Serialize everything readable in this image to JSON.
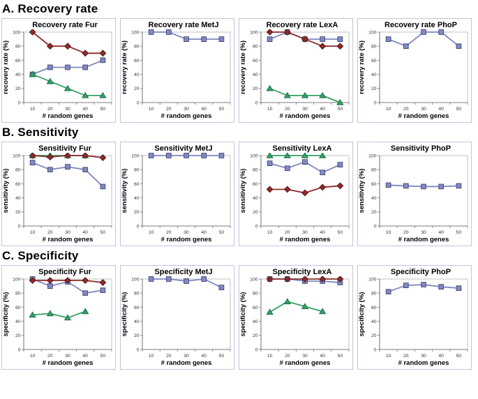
{
  "sections": [
    {
      "label": "A. Recovery rate",
      "chart_indexes": [
        0,
        1,
        2,
        3
      ]
    },
    {
      "label": "B. Sensitivity",
      "chart_indexes": [
        4,
        5,
        6,
        7
      ]
    },
    {
      "label": "C. Specificity",
      "chart_indexes": [
        8,
        9,
        10,
        11
      ]
    }
  ],
  "palette": {
    "red": {
      "line": "#8e2b2b",
      "fill": "#8e2b2b",
      "edge": "#4f1515",
      "marker": "diamond"
    },
    "blue": {
      "line": "#7f86bf",
      "fill": "#8089c2",
      "edge": "#3f4677",
      "marker": "square"
    },
    "green": {
      "line": "#33a066",
      "fill": "#33a066",
      "edge": "#1e6b41",
      "marker": "triangle"
    }
  },
  "chart_data": [
    {
      "type": "line",
      "title": "Recovery rate Fur",
      "xlabel": "# random genes",
      "ylabel": "recovery rate (%)",
      "x": [
        10,
        20,
        30,
        40,
        50
      ],
      "ylim": [
        0,
        100
      ],
      "yticks": [
        0,
        20,
        40,
        60,
        80,
        100
      ],
      "grid": false,
      "legend": "none",
      "series": [
        {
          "name": "blue-squares",
          "color": "blue",
          "values": [
            40,
            50,
            50,
            50,
            60
          ]
        },
        {
          "name": "green-triangles",
          "color": "green",
          "values": [
            40,
            30,
            20,
            10,
            10
          ]
        },
        {
          "name": "red-diamonds",
          "color": "red",
          "values": [
            100,
            80,
            80,
            70,
            70
          ]
        }
      ]
    },
    {
      "type": "line",
      "title": "Recovery rate MetJ",
      "xlabel": "# random genes",
      "ylabel": "recovery rate (%)",
      "x": [
        10,
        20,
        30,
        40,
        50
      ],
      "ylim": [
        0,
        100
      ],
      "yticks": [
        0,
        20,
        40,
        60,
        80,
        100
      ],
      "grid": false,
      "legend": "none",
      "series": [
        {
          "name": "blue-squares",
          "color": "blue",
          "values": [
            100,
            100,
            90,
            90,
            90
          ]
        }
      ]
    },
    {
      "type": "line",
      "title": "Recovery rate LexA",
      "xlabel": "# random genes",
      "ylabel": "recovery rate (%)",
      "x": [
        10,
        20,
        30,
        40,
        50
      ],
      "ylim": [
        0,
        100
      ],
      "yticks": [
        0,
        20,
        40,
        60,
        80,
        100
      ],
      "grid": false,
      "legend": "none",
      "series": [
        {
          "name": "blue-squares",
          "color": "blue",
          "values": [
            90,
            100,
            90,
            90,
            90
          ]
        },
        {
          "name": "green-triangles",
          "color": "green",
          "values": [
            20,
            10,
            10,
            10,
            0
          ]
        },
        {
          "name": "red-diamonds",
          "color": "red",
          "values": [
            100,
            100,
            90,
            80,
            80
          ]
        }
      ]
    },
    {
      "type": "line",
      "title": "Recovery rate PhoP",
      "xlabel": "# random genes",
      "ylabel": "recovery rate (%)",
      "x": [
        10,
        20,
        30,
        40,
        50
      ],
      "ylim": [
        0,
        100
      ],
      "yticks": [
        0,
        20,
        40,
        60,
        80,
        100
      ],
      "grid": false,
      "legend": "none",
      "series": [
        {
          "name": "blue-squares",
          "color": "blue",
          "values": [
            90,
            80,
            100,
            100,
            80
          ]
        }
      ]
    },
    {
      "type": "line",
      "title": "Sensitivity Fur",
      "xlabel": "# random genes",
      "ylabel": "sensitivity (%)",
      "x": [
        10,
        20,
        30,
        40,
        50
      ],
      "ylim": [
        0,
        100
      ],
      "yticks": [
        0,
        20,
        40,
        60,
        80,
        100
      ],
      "grid": false,
      "legend": "none",
      "series": [
        {
          "name": "blue-squares",
          "color": "blue",
          "values": [
            90,
            80,
            84,
            80,
            56
          ]
        },
        {
          "name": "green-triangles",
          "color": "green",
          "values": [
            100,
            100,
            100,
            100,
            null
          ]
        },
        {
          "name": "red-diamonds",
          "color": "red",
          "values": [
            100,
            98,
            100,
            100,
            97
          ]
        }
      ]
    },
    {
      "type": "line",
      "title": "Sensitivity MetJ",
      "xlabel": "# random genes",
      "ylabel": "sensitivity (%)",
      "x": [
        10,
        20,
        30,
        40,
        50
      ],
      "ylim": [
        0,
        100
      ],
      "yticks": [
        0,
        20,
        40,
        60,
        80,
        100
      ],
      "grid": false,
      "legend": "none",
      "series": [
        {
          "name": "blue-squares",
          "color": "blue",
          "values": [
            100,
            100,
            100,
            100,
            100
          ]
        }
      ]
    },
    {
      "type": "line",
      "title": "Sensitivity LexA",
      "xlabel": "# random genes",
      "ylabel": "sensitivity (%)",
      "x": [
        10,
        20,
        30,
        40,
        50
      ],
      "ylim": [
        0,
        100
      ],
      "yticks": [
        0,
        20,
        40,
        60,
        80,
        100
      ],
      "grid": false,
      "legend": "none",
      "series": [
        {
          "name": "blue-squares",
          "color": "blue",
          "values": [
            89,
            82,
            91,
            76,
            87
          ]
        },
        {
          "name": "green-triangles",
          "color": "green",
          "values": [
            100,
            100,
            100,
            100,
            null
          ]
        },
        {
          "name": "red-diamonds",
          "color": "red",
          "values": [
            52,
            52,
            47,
            55,
            57
          ]
        }
      ]
    },
    {
      "type": "line",
      "title": "Sensitivity PhoP",
      "xlabel": "# random genes",
      "ylabel": "sensitivity (%)",
      "x": [
        10,
        20,
        30,
        40,
        50
      ],
      "ylim": [
        0,
        100
      ],
      "yticks": [
        0,
        20,
        40,
        60,
        80,
        100
      ],
      "grid": false,
      "legend": "none",
      "series": [
        {
          "name": "blue-squares",
          "color": "blue",
          "values": [
            58,
            57,
            56,
            56,
            57
          ]
        }
      ]
    },
    {
      "type": "line",
      "title": "Specificity Fur",
      "xlabel": "# random genes",
      "ylabel": "specificity (%)",
      "x": [
        10,
        20,
        30,
        40,
        50
      ],
      "ylim": [
        0,
        100
      ],
      "yticks": [
        0,
        20,
        40,
        60,
        80,
        100
      ],
      "grid": false,
      "legend": "none",
      "series": [
        {
          "name": "blue-squares",
          "color": "blue",
          "values": [
            100,
            90,
            96,
            80,
            84
          ]
        },
        {
          "name": "green-triangles",
          "color": "green",
          "values": [
            49,
            51,
            45,
            54,
            null
          ]
        },
        {
          "name": "red-diamonds",
          "color": "red",
          "values": [
            98,
            98,
            98,
            98,
            95
          ]
        }
      ]
    },
    {
      "type": "line",
      "title": "Specificity MetJ",
      "xlabel": "# random genes",
      "ylabel": "specificity (%)",
      "x": [
        10,
        20,
        30,
        40,
        50
      ],
      "ylim": [
        0,
        100
      ],
      "yticks": [
        0,
        20,
        40,
        60,
        80,
        100
      ],
      "grid": false,
      "legend": "none",
      "series": [
        {
          "name": "blue-squares",
          "color": "blue",
          "values": [
            100,
            100,
            97,
            100,
            88
          ]
        }
      ]
    },
    {
      "type": "line",
      "title": "Specificity LexA",
      "xlabel": "# random genes",
      "ylabel": "specificity (%)",
      "x": [
        10,
        20,
        30,
        40,
        50
      ],
      "ylim": [
        0,
        100
      ],
      "yticks": [
        0,
        20,
        40,
        60,
        80,
        100
      ],
      "grid": false,
      "legend": "none",
      "series": [
        {
          "name": "blue-squares",
          "color": "blue",
          "values": [
            100,
            100,
            97,
            97,
            95
          ]
        },
        {
          "name": "green-triangles",
          "color": "green",
          "values": [
            53,
            68,
            61,
            54,
            null
          ]
        },
        {
          "name": "red-diamonds",
          "color": "red",
          "values": [
            100,
            100,
            100,
            100,
            100
          ]
        }
      ]
    },
    {
      "type": "line",
      "title": "Specificity PhoP",
      "xlabel": "# random genes",
      "ylabel": "specificity (%)",
      "x": [
        10,
        20,
        30,
        40,
        50
      ],
      "ylim": [
        0,
        100
      ],
      "yticks": [
        0,
        20,
        40,
        60,
        80,
        100
      ],
      "grid": false,
      "legend": "none",
      "series": [
        {
          "name": "blue-squares",
          "color": "blue",
          "values": [
            82,
            91,
            92,
            89,
            87
          ]
        }
      ]
    }
  ],
  "style": {
    "plot_border_color": "#b3b3b3",
    "axis_color": "#7d7d7d",
    "tick_label_color": "#333333"
  }
}
